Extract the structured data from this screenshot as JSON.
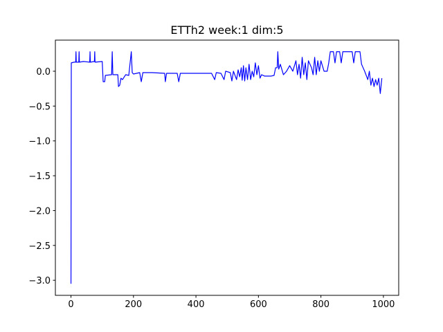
{
  "chart_data": {
    "type": "line",
    "title": "ETTh2 week:1 dim:5",
    "color": "#0000ff",
    "x": [
      0,
      1,
      10,
      15,
      16,
      17,
      25,
      26,
      27,
      40,
      60,
      61,
      62,
      75,
      76,
      77,
      100,
      103,
      108,
      110,
      130,
      132,
      134,
      150,
      152,
      156,
      160,
      165,
      175,
      185,
      193,
      196,
      200,
      220,
      225,
      230,
      260,
      300,
      302,
      306,
      340,
      345,
      350,
      400,
      450,
      460,
      465,
      480,
      490,
      495,
      510,
      515,
      520,
      530,
      535,
      540,
      545,
      548,
      552,
      556,
      560,
      565,
      570,
      575,
      580,
      585,
      590,
      595,
      600,
      605,
      610,
      620,
      640,
      650,
      655,
      660,
      662,
      665,
      670,
      680,
      690,
      700,
      710,
      720,
      725,
      730,
      735,
      740,
      745,
      750,
      755,
      760,
      770,
      775,
      780,
      785,
      790,
      795,
      800,
      810,
      820,
      825,
      830,
      840,
      845,
      850,
      860,
      865,
      870,
      900,
      905,
      910,
      925,
      930,
      935,
      940,
      950,
      955,
      960,
      965,
      970,
      975,
      980,
      985,
      990,
      995
    ],
    "values": [
      -3.05,
      0.12,
      0.13,
      0.13,
      0.28,
      0.13,
      0.13,
      0.28,
      0.13,
      0.14,
      0.13,
      0.28,
      0.13,
      0.14,
      0.28,
      0.13,
      0.14,
      -0.15,
      -0.15,
      -0.06,
      -0.05,
      0.28,
      -0.05,
      -0.05,
      -0.22,
      -0.2,
      -0.1,
      -0.12,
      -0.05,
      -0.06,
      0.28,
      -0.02,
      -0.04,
      -0.02,
      -0.15,
      -0.02,
      -0.02,
      -0.03,
      -0.15,
      -0.03,
      -0.03,
      -0.15,
      -0.03,
      -0.03,
      -0.03,
      -0.12,
      -0.02,
      -0.03,
      -0.12,
      0.0,
      -0.02,
      -0.14,
      0.0,
      -0.12,
      0.02,
      -0.08,
      0.05,
      -0.13,
      0.08,
      -0.14,
      0.05,
      -0.12,
      0.1,
      -0.12,
      0.0,
      -0.08,
      0.12,
      -0.05,
      0.08,
      -0.1,
      -0.05,
      -0.07,
      -0.07,
      -0.06,
      0.05,
      0.05,
      0.28,
      0.03,
      0.1,
      -0.05,
      0.0,
      0.08,
      0.0,
      0.15,
      -0.05,
      0.1,
      -0.1,
      0.2,
      -0.05,
      0.12,
      -0.12,
      0.15,
      0.05,
      -0.05,
      0.2,
      -0.05,
      0.15,
      0.0,
      0.15,
      0.0,
      0.0,
      0.12,
      0.28,
      0.28,
      0.12,
      0.28,
      0.28,
      0.12,
      0.28,
      0.28,
      0.12,
      0.28,
      0.28,
      0.1,
      0.05,
      0.0,
      -0.12,
      0.0,
      -0.2,
      -0.1,
      -0.22,
      -0.12,
      -0.2,
      -0.1,
      -0.32,
      -0.1
    ],
    "xlim": [
      -49.95,
      1048.95
    ],
    "ylim": [
      -3.2165,
      0.4465
    ],
    "xticks": [
      0,
      200,
      400,
      600,
      800,
      1000
    ],
    "yticks": [
      {
        "value": -3.0,
        "label": "−3.0"
      },
      {
        "value": -2.5,
        "label": "−2.5"
      },
      {
        "value": -2.0,
        "label": "−2.0"
      },
      {
        "value": -1.5,
        "label": "−1.5"
      },
      {
        "value": -1.0,
        "label": "−1.0"
      },
      {
        "value": -0.5,
        "label": "−0.5"
      },
      {
        "value": 0.0,
        "label": "0.0"
      }
    ]
  }
}
